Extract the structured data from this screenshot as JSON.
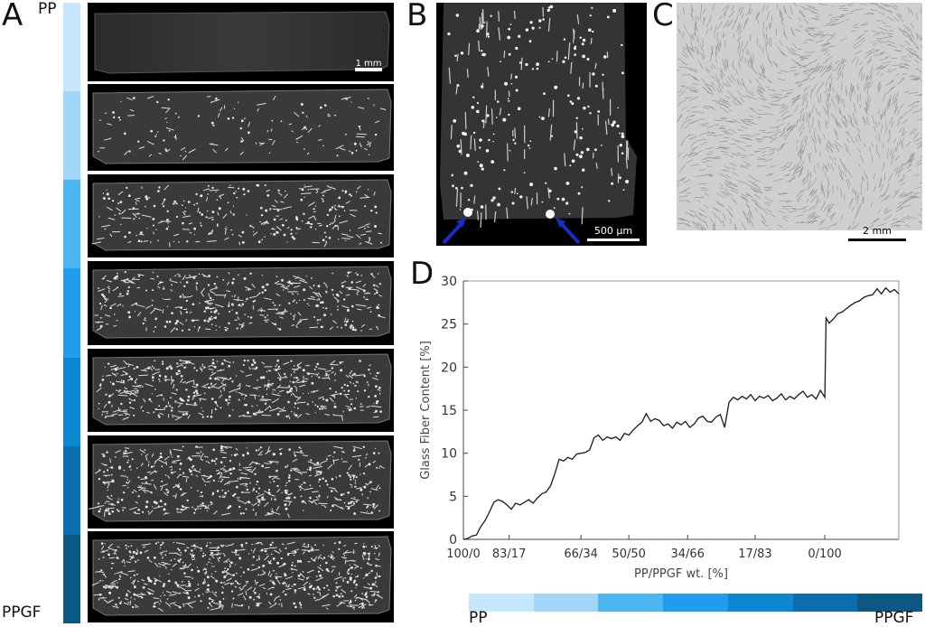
{
  "panel_a": {
    "letter": "A",
    "top_label": "PP",
    "bottom_label": "PPGF",
    "gradient_colors": [
      "#c6e6fb",
      "#a2d6f6",
      "#4cb6f1",
      "#209ded",
      "#0d87d2",
      "#0c6dae",
      "#0d5784"
    ],
    "scale_bar": "1 mm"
  },
  "panel_b": {
    "letter": "B",
    "scale_bar": "500 µm"
  },
  "panel_c": {
    "letter": "C",
    "scale_bar": "2 mm"
  },
  "panel_d": {
    "letter": "D",
    "bottom_left_label": "PP",
    "bottom_right_label": "PPGF",
    "bar_colors": [
      "#c6e6fb",
      "#a2d6f6",
      "#4cb6f1",
      "#209ded",
      "#0d87d2",
      "#0c6dae",
      "#0d5784"
    ]
  },
  "chart_data": {
    "type": "line",
    "xlabel": "PP/PPGF wt. [%]",
    "ylabel": "Glass Fiber Content [%]",
    "ylim": [
      0,
      30
    ],
    "xlim": [
      0,
      100
    ],
    "yticks": [
      0,
      5,
      10,
      15,
      20,
      25,
      30
    ],
    "xticks": [
      {
        "x": 0,
        "label": "100/0"
      },
      {
        "x": 10.5,
        "label": "83/17"
      },
      {
        "x": 27,
        "label": "66/34"
      },
      {
        "x": 38,
        "label": "50/50"
      },
      {
        "x": 51.5,
        "label": "34/66"
      },
      {
        "x": 67,
        "label": "17/83"
      },
      {
        "x": 83,
        "label": "0/100"
      }
    ],
    "grid": false,
    "series": [
      {
        "x": [
          0,
          1,
          2,
          3,
          4,
          5,
          6,
          7,
          8,
          9,
          10,
          11,
          12,
          13,
          14,
          15,
          16,
          17,
          18,
          19,
          20,
          21,
          22,
          23,
          24,
          25,
          26,
          27,
          28,
          29,
          30,
          31,
          32,
          33,
          34,
          35,
          36,
          37,
          38,
          39,
          40,
          41,
          42,
          43,
          44,
          45,
          46,
          47,
          48,
          49,
          50,
          51,
          52,
          53,
          54,
          55,
          56,
          57,
          58,
          59,
          60,
          61,
          62,
          63,
          64,
          65,
          66,
          67,
          68,
          69,
          70,
          71,
          72,
          73,
          74,
          75,
          76,
          77,
          78,
          79,
          80,
          81,
          82,
          83,
          83.3,
          84,
          85,
          86,
          87,
          88,
          89,
          90,
          91,
          92,
          93,
          94,
          95,
          96,
          97,
          98,
          99,
          100
        ],
        "values": [
          0,
          0.1,
          0.4,
          0.5,
          1.5,
          2.2,
          3.2,
          4.3,
          4.6,
          4.4,
          4.0,
          3.5,
          4.2,
          4.0,
          4.3,
          4.6,
          4.2,
          4.8,
          5.3,
          5.5,
          6.2,
          7.6,
          9.3,
          9.1,
          9.5,
          9.3,
          9.9,
          10.0,
          10.1,
          10.4,
          11.8,
          12.1,
          11.5,
          11.9,
          11.7,
          11.9,
          11.5,
          12.3,
          12.1,
          12.7,
          13.2,
          13.6,
          14.6,
          13.7,
          14.0,
          13.8,
          13.2,
          13.4,
          12.9,
          13.6,
          13.3,
          13.7,
          13.0,
          13.4,
          14.1,
          14.3,
          13.7,
          13.6,
          14.2,
          14.5,
          13.0,
          15.9,
          16.5,
          16.2,
          16.6,
          16.3,
          16.8,
          16.1,
          16.6,
          16.4,
          16.7,
          16.1,
          16.4,
          16.9,
          16.2,
          16.6,
          16.3,
          16.8,
          17.2,
          16.5,
          16.8,
          16.3,
          17.3,
          16.5,
          25.7,
          25.1,
          25.6,
          26.2,
          26.4,
          26.8,
          27.2,
          27.5,
          27.7,
          28.1,
          28.3,
          28.4,
          29.1,
          28.5,
          29.2,
          28.7,
          29.0,
          28.5
        ]
      }
    ]
  }
}
